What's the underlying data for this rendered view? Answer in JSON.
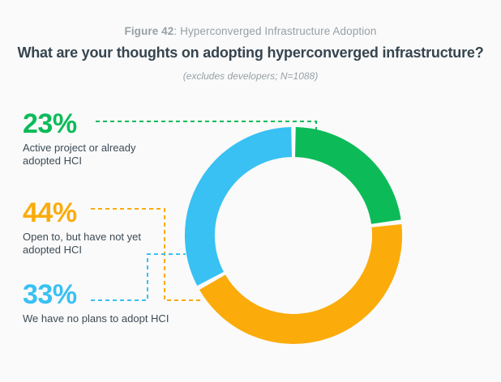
{
  "header": {
    "figure_label": "Figure 42",
    "figure_rest": ": Hyperconverged Infrastructure Adoption",
    "title": "What are your thoughts on adopting hyperconverged infrastructure?",
    "subtitle": "(excludes developers; N=1088)"
  },
  "chart_data": {
    "type": "pie",
    "variant": "donut",
    "title": "Hyperconverged Infrastructure Adoption",
    "question": "What are your thoughts on adopting hyperconverged infrastructure?",
    "sample_note": "excludes developers; N=1088",
    "sample_size": 1088,
    "start_angle_deg": 0,
    "direction": "clockwise",
    "legend_position": "left",
    "slices": [
      {
        "display": "23%",
        "value": 23,
        "label": "Active project or already adopted HCI",
        "color": "#0cbb58"
      },
      {
        "display": "44%",
        "value": 44,
        "label": "Open to, but have not yet adopted HCI",
        "color": "#fbab0a"
      },
      {
        "display": "33%",
        "value": 33,
        "label": "We have no plans to adopt HCI",
        "color": "#38c1f2"
      }
    ]
  },
  "colors": {
    "background": "#fafafa",
    "title_text": "#36454f",
    "muted_text": "#97a0a6",
    "label_text": "#3d4b55"
  }
}
